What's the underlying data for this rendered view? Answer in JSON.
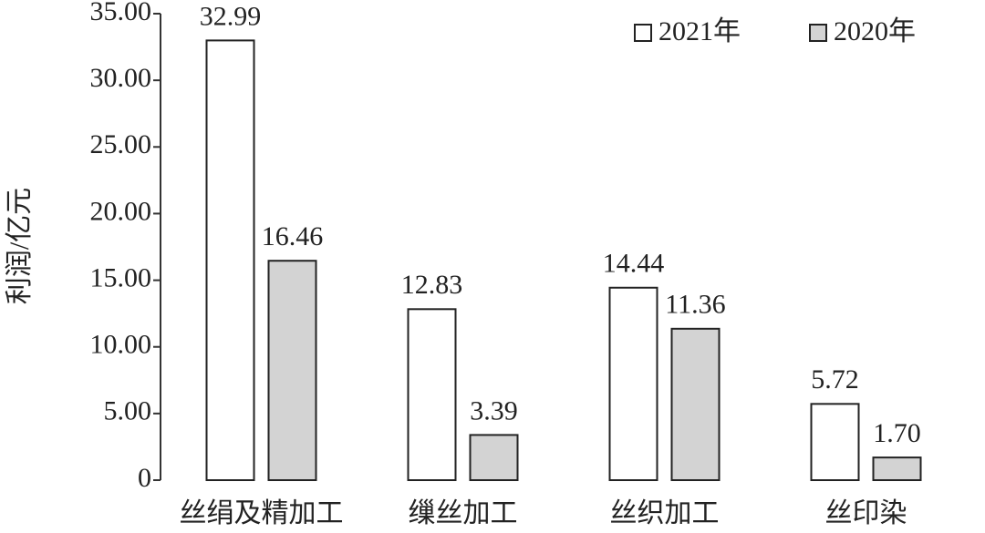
{
  "chart_data": {
    "type": "bar",
    "y_label": "利润/亿元",
    "categories": [
      "丝绢及精加工",
      "缫丝加工",
      "丝织加工",
      "丝印染"
    ],
    "series": [
      {
        "name": "2021年",
        "color": "#ffffff",
        "values": [
          32.99,
          12.83,
          14.44,
          5.72
        ],
        "value_labels": [
          "32.99",
          "12.83",
          "14.44",
          "5.72"
        ]
      },
      {
        "name": "2020年",
        "color": "#d3d3d3",
        "values": [
          16.46,
          3.39,
          11.36,
          1.7
        ],
        "value_labels": [
          "16.46",
          "3.39",
          "11.36",
          "1.70"
        ]
      }
    ],
    "ylim": [
      0,
      35
    ],
    "yticks": [
      0,
      {
        "value": 5,
        "label": "5.00"
      },
      {
        "value": 10,
        "label": "10.00"
      },
      {
        "value": 15,
        "label": "15.00"
      },
      {
        "value": 20,
        "label": "20.00"
      },
      {
        "value": 25,
        "label": "25.00"
      },
      {
        "value": 30,
        "label": "30.00"
      },
      {
        "value": 35,
        "label": "35.00"
      }
    ],
    "grid": false,
    "legend_position": "top-right"
  }
}
